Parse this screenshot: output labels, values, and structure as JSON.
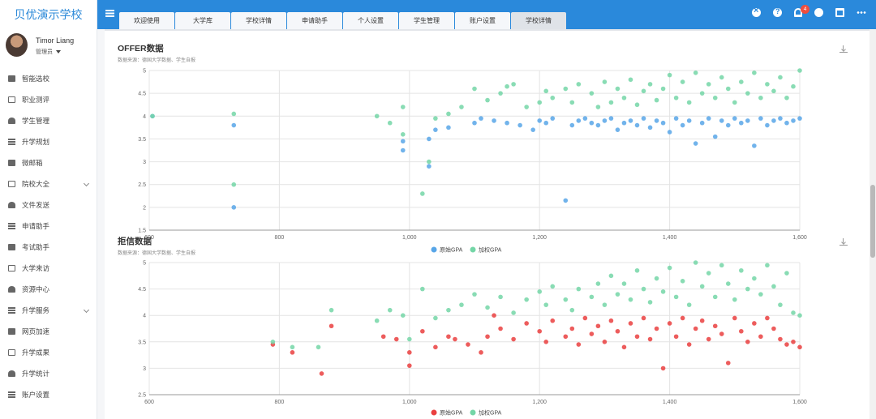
{
  "app": {
    "brand": "贝优演示学校"
  },
  "user": {
    "name": "Timor Liang",
    "role": "管理员"
  },
  "sidebar": {
    "items": [
      {
        "label": "智能选校",
        "icon": "graduation-cap-icon"
      },
      {
        "label": "职业测评",
        "icon": "clipboard-icon"
      },
      {
        "label": "学生管理",
        "icon": "users-icon"
      },
      {
        "label": "升学规划",
        "icon": "list-icon"
      },
      {
        "label": "微邮箱",
        "icon": "mail-icon"
      },
      {
        "label": "院校大全",
        "icon": "bank-icon",
        "expand": true
      },
      {
        "label": "文件发送",
        "icon": "file-icon"
      },
      {
        "label": "申请助手",
        "icon": "list-icon"
      },
      {
        "label": "考试助手",
        "icon": "edit-icon"
      },
      {
        "label": "大学来访",
        "icon": "calendar-icon"
      },
      {
        "label": "资源中心",
        "icon": "briefcase-icon"
      },
      {
        "label": "升学服务",
        "icon": "grid-icon",
        "expand": true
      },
      {
        "label": "网页加速",
        "icon": "send-icon"
      },
      {
        "label": "升学成果",
        "icon": "id-card-icon"
      },
      {
        "label": "升学统计",
        "icon": "bar-chart-icon"
      },
      {
        "label": "账户设置",
        "icon": "gear-icon"
      }
    ]
  },
  "tabs": [
    {
      "label": "欢迎使用"
    },
    {
      "label": "大学库"
    },
    {
      "label": "学校详情"
    },
    {
      "label": "申请助手"
    },
    {
      "label": "个人设置"
    },
    {
      "label": "学生管理"
    },
    {
      "label": "账户设置"
    },
    {
      "label": "学校详情",
      "active": true
    }
  ],
  "toolbar": {
    "notification_count": "4"
  },
  "colors": {
    "brand": "#2a89db",
    "blue_series": "#58a6e8",
    "green_series": "#74d6a7",
    "red_series": "#ea3f3f"
  },
  "panels": {
    "offer": {
      "title": "OFFER数据",
      "subtitle": "数据来源：德国大学数据、学生自报"
    },
    "reject": {
      "title": "拒信数据",
      "subtitle": "数据来源：德国大学数据、学生自报"
    }
  },
  "chart_data": [
    {
      "type": "scatter",
      "title": "OFFER数据",
      "subtitle": "数据来源：德国大学数据、学生自报",
      "xlim": [
        600,
        1600
      ],
      "ylim": [
        1.5,
        5
      ],
      "x_ticks": [
        "600",
        "800",
        "1,000",
        "1,200",
        "1,400",
        "1,600"
      ],
      "y_ticks": [
        "1.5",
        "2",
        "2.5",
        "3",
        "3.5",
        "4",
        "4.5",
        "5"
      ],
      "legend_position": "bottom-center",
      "grid": true,
      "series": [
        {
          "name": "原始GPA",
          "color": "#58a6e8",
          "points": [
            [
              605,
              4.0
            ],
            [
              730,
              3.8
            ],
            [
              730,
              2.0
            ],
            [
              990,
              3.45
            ],
            [
              990,
              3.25
            ],
            [
              1030,
              2.9
            ],
            [
              1030,
              3.5
            ],
            [
              1040,
              3.7
            ],
            [
              1060,
              3.75
            ],
            [
              1100,
              3.85
            ],
            [
              1110,
              3.95
            ],
            [
              1130,
              3.9
            ],
            [
              1150,
              3.85
            ],
            [
              1170,
              3.8
            ],
            [
              1190,
              3.7
            ],
            [
              1200,
              3.9
            ],
            [
              1210,
              3.85
            ],
            [
              1220,
              3.95
            ],
            [
              1240,
              2.15
            ],
            [
              1250,
              3.8
            ],
            [
              1260,
              3.9
            ],
            [
              1270,
              3.95
            ],
            [
              1280,
              3.85
            ],
            [
              1290,
              3.8
            ],
            [
              1300,
              3.9
            ],
            [
              1310,
              3.95
            ],
            [
              1320,
              3.7
            ],
            [
              1330,
              3.85
            ],
            [
              1340,
              3.9
            ],
            [
              1350,
              3.8
            ],
            [
              1360,
              3.95
            ],
            [
              1370,
              3.75
            ],
            [
              1380,
              3.9
            ],
            [
              1390,
              3.85
            ],
            [
              1400,
              3.65
            ],
            [
              1410,
              3.95
            ],
            [
              1420,
              3.8
            ],
            [
              1430,
              3.9
            ],
            [
              1440,
              3.4
            ],
            [
              1450,
              3.85
            ],
            [
              1460,
              3.95
            ],
            [
              1470,
              3.55
            ],
            [
              1480,
              3.9
            ],
            [
              1490,
              3.8
            ],
            [
              1500,
              3.95
            ],
            [
              1510,
              3.85
            ],
            [
              1520,
              3.9
            ],
            [
              1530,
              3.35
            ],
            [
              1540,
              3.95
            ],
            [
              1550,
              3.8
            ],
            [
              1560,
              3.9
            ],
            [
              1570,
              3.95
            ],
            [
              1580,
              3.85
            ],
            [
              1590,
              3.9
            ],
            [
              1600,
              3.95
            ]
          ]
        },
        {
          "name": "加权GPA",
          "color": "#74d6a7",
          "points": [
            [
              605,
              4.0
            ],
            [
              730,
              4.05
            ],
            [
              730,
              2.5
            ],
            [
              950,
              4.0
            ],
            [
              970,
              3.85
            ],
            [
              990,
              4.2
            ],
            [
              990,
              3.6
            ],
            [
              1020,
              2.3
            ],
            [
              1030,
              3.0
            ],
            [
              1040,
              3.95
            ],
            [
              1060,
              4.05
            ],
            [
              1080,
              4.2
            ],
            [
              1100,
              4.6
            ],
            [
              1120,
              4.35
            ],
            [
              1140,
              4.5
            ],
            [
              1150,
              4.65
            ],
            [
              1160,
              4.7
            ],
            [
              1180,
              4.2
            ],
            [
              1200,
              4.3
            ],
            [
              1210,
              4.55
            ],
            [
              1220,
              4.4
            ],
            [
              1240,
              4.6
            ],
            [
              1250,
              4.3
            ],
            [
              1260,
              4.7
            ],
            [
              1280,
              4.5
            ],
            [
              1290,
              4.2
            ],
            [
              1300,
              4.75
            ],
            [
              1310,
              4.3
            ],
            [
              1320,
              4.6
            ],
            [
              1330,
              4.4
            ],
            [
              1340,
              4.8
            ],
            [
              1350,
              4.25
            ],
            [
              1360,
              4.55
            ],
            [
              1370,
              4.7
            ],
            [
              1380,
              4.35
            ],
            [
              1390,
              4.6
            ],
            [
              1400,
              4.9
            ],
            [
              1410,
              4.4
            ],
            [
              1420,
              4.75
            ],
            [
              1430,
              4.3
            ],
            [
              1440,
              4.95
            ],
            [
              1450,
              4.5
            ],
            [
              1460,
              4.7
            ],
            [
              1470,
              4.4
            ],
            [
              1480,
              4.85
            ],
            [
              1490,
              4.6
            ],
            [
              1500,
              4.3
            ],
            [
              1510,
              4.75
            ],
            [
              1520,
              4.5
            ],
            [
              1530,
              4.95
            ],
            [
              1540,
              4.4
            ],
            [
              1550,
              4.7
            ],
            [
              1560,
              4.55
            ],
            [
              1570,
              4.85
            ],
            [
              1580,
              4.4
            ],
            [
              1590,
              4.65
            ],
            [
              1600,
              5.0
            ]
          ]
        }
      ]
    },
    {
      "type": "scatter",
      "title": "拒信数据",
      "subtitle": "数据来源：德国大学数据、学生自报",
      "xlim": [
        600,
        1600
      ],
      "ylim": [
        2.5,
        5
      ],
      "x_ticks": [
        "600",
        "800",
        "1,000",
        "1,200",
        "1,400",
        "1,600"
      ],
      "y_ticks": [
        "2.5",
        "3",
        "3.5",
        "4",
        "4.5",
        "5"
      ],
      "legend_position": "bottom-center",
      "grid": true,
      "series": [
        {
          "name": "原始GPA",
          "color": "#ea3f3f",
          "points": [
            [
              790,
              3.45
            ],
            [
              820,
              3.3
            ],
            [
              865,
              2.9
            ],
            [
              880,
              3.8
            ],
            [
              960,
              3.6
            ],
            [
              980,
              3.55
            ],
            [
              1000,
              3.05
            ],
            [
              1000,
              3.3
            ],
            [
              1020,
              3.7
            ],
            [
              1040,
              3.4
            ],
            [
              1060,
              3.6
            ],
            [
              1070,
              3.55
            ],
            [
              1090,
              3.45
            ],
            [
              1110,
              3.3
            ],
            [
              1120,
              3.6
            ],
            [
              1130,
              4.0
            ],
            [
              1140,
              3.75
            ],
            [
              1160,
              3.55
            ],
            [
              1180,
              3.85
            ],
            [
              1200,
              3.7
            ],
            [
              1210,
              3.5
            ],
            [
              1220,
              3.9
            ],
            [
              1240,
              3.6
            ],
            [
              1250,
              3.75
            ],
            [
              1260,
              3.45
            ],
            [
              1270,
              3.95
            ],
            [
              1280,
              3.65
            ],
            [
              1290,
              3.8
            ],
            [
              1300,
              3.5
            ],
            [
              1310,
              3.9
            ],
            [
              1320,
              3.7
            ],
            [
              1330,
              3.4
            ],
            [
              1340,
              3.85
            ],
            [
              1350,
              3.6
            ],
            [
              1360,
              3.95
            ],
            [
              1370,
              3.55
            ],
            [
              1380,
              3.75
            ],
            [
              1390,
              3.0
            ],
            [
              1400,
              3.85
            ],
            [
              1410,
              3.6
            ],
            [
              1420,
              3.95
            ],
            [
              1430,
              3.45
            ],
            [
              1440,
              3.75
            ],
            [
              1450,
              3.9
            ],
            [
              1460,
              3.55
            ],
            [
              1470,
              3.8
            ],
            [
              1480,
              3.65
            ],
            [
              1490,
              3.1
            ],
            [
              1500,
              3.95
            ],
            [
              1510,
              3.7
            ],
            [
              1520,
              3.5
            ],
            [
              1530,
              3.85
            ],
            [
              1540,
              3.6
            ],
            [
              1550,
              3.95
            ],
            [
              1560,
              3.75
            ],
            [
              1570,
              3.55
            ],
            [
              1580,
              3.45
            ],
            [
              1590,
              3.5
            ],
            [
              1600,
              3.4
            ]
          ]
        },
        {
          "name": "加权GPA",
          "color": "#74d6a7",
          "points": [
            [
              790,
              3.5
            ],
            [
              820,
              3.4
            ],
            [
              860,
              3.4
            ],
            [
              880,
              4.1
            ],
            [
              950,
              3.9
            ],
            [
              970,
              4.1
            ],
            [
              990,
              4.0
            ],
            [
              1000,
              3.55
            ],
            [
              1020,
              4.5
            ],
            [
              1040,
              3.95
            ],
            [
              1060,
              4.1
            ],
            [
              1080,
              4.2
            ],
            [
              1100,
              4.4
            ],
            [
              1120,
              4.15
            ],
            [
              1140,
              4.35
            ],
            [
              1160,
              4.05
            ],
            [
              1180,
              4.3
            ],
            [
              1200,
              4.45
            ],
            [
              1210,
              4.2
            ],
            [
              1220,
              4.55
            ],
            [
              1240,
              4.3
            ],
            [
              1250,
              4.1
            ],
            [
              1260,
              4.5
            ],
            [
              1280,
              4.35
            ],
            [
              1290,
              4.6
            ],
            [
              1300,
              4.2
            ],
            [
              1310,
              4.75
            ],
            [
              1320,
              4.4
            ],
            [
              1330,
              4.6
            ],
            [
              1340,
              4.3
            ],
            [
              1350,
              4.85
            ],
            [
              1360,
              4.5
            ],
            [
              1370,
              4.25
            ],
            [
              1380,
              4.7
            ],
            [
              1390,
              4.45
            ],
            [
              1400,
              4.9
            ],
            [
              1410,
              4.35
            ],
            [
              1420,
              4.65
            ],
            [
              1430,
              4.2
            ],
            [
              1440,
              5.0
            ],
            [
              1450,
              4.55
            ],
            [
              1460,
              4.8
            ],
            [
              1470,
              4.35
            ],
            [
              1480,
              4.95
            ],
            [
              1490,
              4.6
            ],
            [
              1500,
              4.3
            ],
            [
              1510,
              4.85
            ],
            [
              1520,
              4.5
            ],
            [
              1530,
              4.7
            ],
            [
              1540,
              4.4
            ],
            [
              1550,
              4.95
            ],
            [
              1560,
              4.55
            ],
            [
              1570,
              4.2
            ],
            [
              1580,
              4.8
            ],
            [
              1590,
              4.05
            ],
            [
              1600,
              4.0
            ]
          ]
        }
      ]
    }
  ]
}
